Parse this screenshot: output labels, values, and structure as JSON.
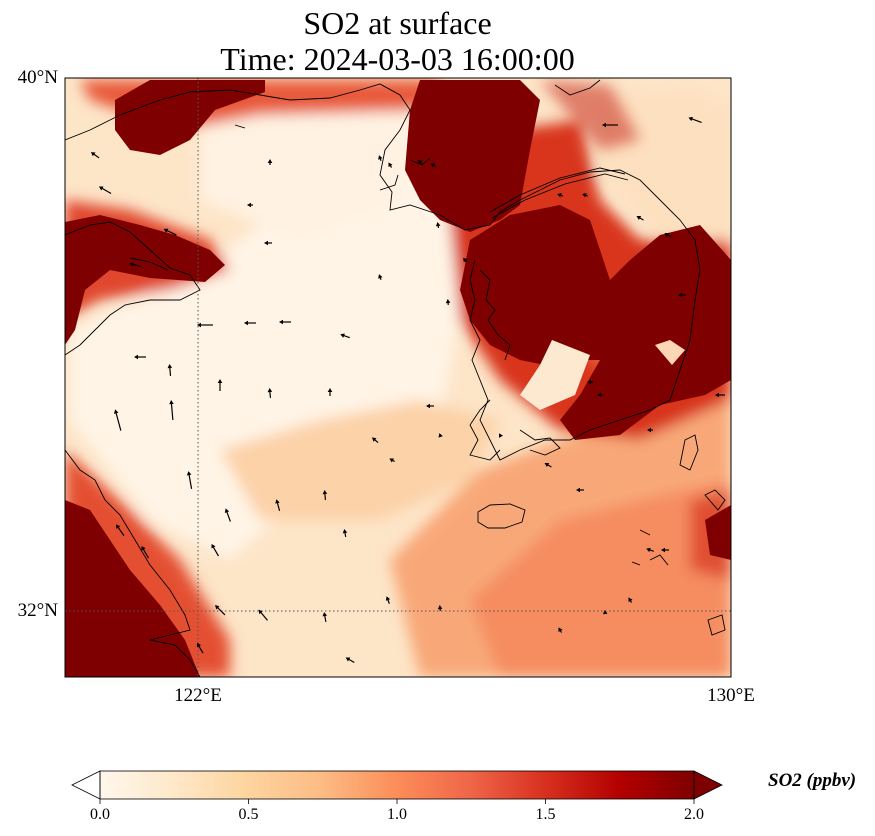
{
  "title": {
    "line1": "SO2 at surface",
    "line2": "Time: 2024-03-03 16:00:00"
  },
  "axes": {
    "lat_labels": [
      "40°N",
      "32°N"
    ],
    "lon_labels": [
      "122°E",
      "130°E"
    ]
  },
  "colorbar": {
    "label": "SO2 (ppbv)",
    "ticks": [
      "0.0",
      "0.5",
      "1.0",
      "1.5",
      "2.0"
    ],
    "colormap": "OrRd",
    "stops": [
      "#fff7ec",
      "#fee8c8",
      "#fdd49e",
      "#fdbb84",
      "#fc8d59",
      "#ef6548",
      "#d7301f",
      "#b30000",
      "#7f0000"
    ],
    "extend": "both"
  },
  "map": {
    "lon_range": [
      120,
      130
    ],
    "lat_range": [
      31,
      40
    ],
    "gridlines": {
      "lon": [
        122
      ],
      "lat": [
        32
      ]
    },
    "style": "filled concentration field with coastlines and wind vectors"
  }
}
